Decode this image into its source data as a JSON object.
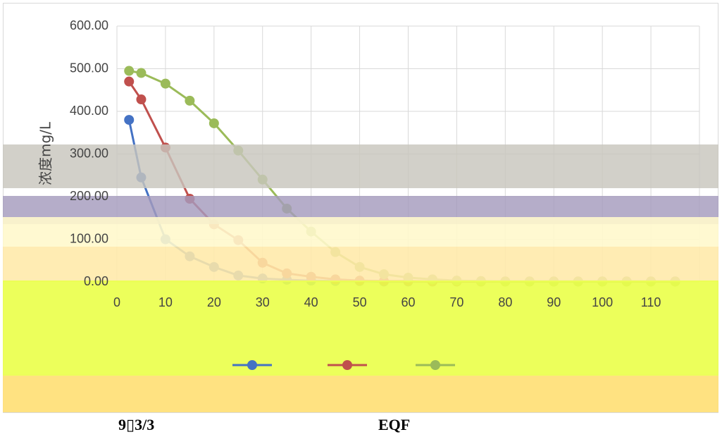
{
  "chart_data": {
    "type": "line",
    "title": "",
    "ylabel": "浓度mg/L",
    "xlabel": "",
    "ylim": [
      0,
      600
    ],
    "y_ticks": [
      "0.00",
      "100.00",
      "200.00",
      "300.00",
      "400.00",
      "500.00",
      "600.00"
    ],
    "x_ticks": [
      "0",
      "10",
      "20",
      "30",
      "40",
      "50",
      "60",
      "70",
      "80",
      "90",
      "100",
      "110"
    ],
    "xlim": [
      0,
      120
    ],
    "grid": true,
    "legend_position": "bottom",
    "series": [
      {
        "color": "#4472c4",
        "x": [
          2.5,
          5,
          10,
          15,
          20,
          25,
          30,
          35,
          40,
          45,
          50,
          55,
          60,
          65,
          70,
          75,
          80,
          85,
          90,
          95,
          100,
          105,
          110,
          115
        ],
        "values": [
          380,
          245,
          100,
          60,
          35,
          15,
          8,
          5,
          3,
          2,
          2,
          1,
          1,
          1,
          1,
          1,
          1,
          1,
          1,
          1,
          1,
          1,
          1,
          1
        ]
      },
      {
        "color": "#c0504d",
        "x": [
          2.5,
          5,
          10,
          15,
          20,
          25,
          30,
          35,
          40,
          45,
          50,
          55,
          60,
          65,
          70,
          75,
          80,
          85,
          90,
          95,
          100,
          105,
          110,
          115
        ],
        "values": [
          470,
          428,
          315,
          195,
          135,
          98,
          45,
          20,
          12,
          6,
          3,
          2,
          2,
          1,
          1,
          1,
          1,
          1,
          1,
          1,
          1,
          1,
          1,
          1
        ]
      },
      {
        "color": "#9bbb59",
        "x": [
          2.5,
          5,
          10,
          15,
          20,
          25,
          30,
          35,
          40,
          45,
          50,
          55,
          60,
          65,
          70,
          75,
          80,
          85,
          90,
          95,
          100,
          105,
          110,
          115
        ],
        "values": [
          495,
          490,
          465,
          425,
          372,
          308,
          240,
          172,
          118,
          70,
          35,
          18,
          10,
          6,
          3,
          2,
          1,
          1,
          1,
          1,
          1,
          1,
          1,
          1
        ]
      }
    ]
  },
  "captions": {
    "left": "9▯3/3",
    "right": "EQF"
  }
}
